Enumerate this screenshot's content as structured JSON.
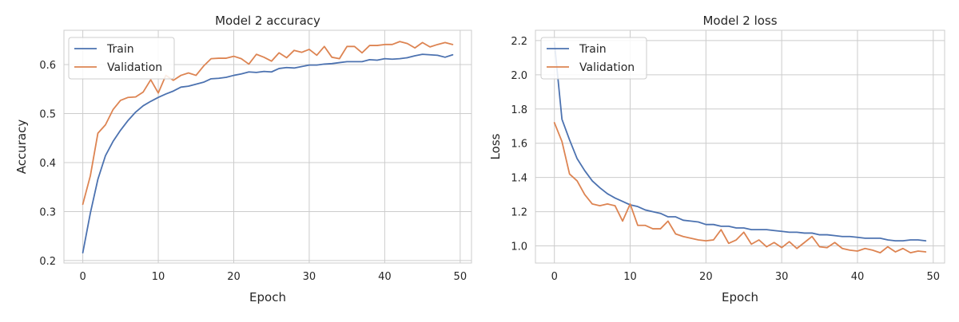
{
  "chart_data": [
    {
      "type": "line",
      "title": "Model 2 accuracy",
      "xlabel": "Epoch",
      "ylabel": "Accuracy",
      "xlim": [
        -2.5,
        51.5
      ],
      "ylim": [
        0.195,
        0.67
      ],
      "xticks": [
        0,
        10,
        20,
        30,
        40,
        50
      ],
      "yticks": [
        0.2,
        0.3,
        0.4,
        0.5,
        0.6
      ],
      "xtick_labels": [
        "0",
        "10",
        "20",
        "30",
        "40",
        "50"
      ],
      "ytick_labels": [
        "0.2",
        "0.3",
        "0.4",
        "0.5",
        "0.6"
      ],
      "grid": true,
      "legend_position": "top-left",
      "x": [
        0,
        1,
        2,
        3,
        4,
        5,
        6,
        7,
        8,
        9,
        10,
        11,
        12,
        13,
        14,
        15,
        16,
        17,
        18,
        19,
        20,
        21,
        22,
        23,
        24,
        25,
        26,
        27,
        28,
        29,
        30,
        31,
        32,
        33,
        34,
        35,
        36,
        37,
        38,
        39,
        40,
        41,
        42,
        43,
        44,
        45,
        46,
        47,
        48,
        49
      ],
      "series": [
        {
          "name": "Train",
          "color": "#4c72b0",
          "values": [
            0.216,
            0.297,
            0.366,
            0.414,
            0.443,
            0.466,
            0.486,
            0.503,
            0.516,
            0.525,
            0.533,
            0.54,
            0.546,
            0.554,
            0.556,
            0.56,
            0.564,
            0.571,
            0.572,
            0.574,
            0.578,
            0.581,
            0.585,
            0.584,
            0.586,
            0.585,
            0.592,
            0.594,
            0.593,
            0.596,
            0.599,
            0.599,
            0.601,
            0.602,
            0.604,
            0.606,
            0.606,
            0.606,
            0.61,
            0.609,
            0.612,
            0.611,
            0.612,
            0.614,
            0.618,
            0.621,
            0.62,
            0.619,
            0.615,
            0.62
          ]
        },
        {
          "name": "Validation",
          "color": "#dd8452",
          "values": [
            0.315,
            0.373,
            0.46,
            0.477,
            0.508,
            0.527,
            0.533,
            0.534,
            0.544,
            0.569,
            0.542,
            0.578,
            0.568,
            0.578,
            0.583,
            0.578,
            0.597,
            0.612,
            0.613,
            0.613,
            0.617,
            0.612,
            0.601,
            0.621,
            0.615,
            0.607,
            0.624,
            0.614,
            0.629,
            0.625,
            0.631,
            0.619,
            0.637,
            0.615,
            0.612,
            0.637,
            0.637,
            0.624,
            0.639,
            0.639,
            0.641,
            0.641,
            0.647,
            0.643,
            0.634,
            0.645,
            0.636,
            0.641,
            0.645,
            0.641
          ]
        }
      ]
    },
    {
      "type": "line",
      "title": "Model 2 loss",
      "xlabel": "Epoch",
      "ylabel": "Loss",
      "xlim": [
        -2.5,
        51.5
      ],
      "ylim": [
        0.9,
        2.26
      ],
      "xticks": [
        0,
        10,
        20,
        30,
        40,
        50
      ],
      "yticks": [
        1.0,
        1.2,
        1.4,
        1.6,
        1.8,
        2.0,
        2.2
      ],
      "xtick_labels": [
        "0",
        "10",
        "20",
        "30",
        "40",
        "50"
      ],
      "ytick_labels": [
        "1.0",
        "1.2",
        "1.4",
        "1.6",
        "1.8",
        "2.0",
        "2.2"
      ],
      "grid": true,
      "legend_position": "top-left",
      "x": [
        0,
        1,
        2,
        3,
        4,
        5,
        6,
        7,
        8,
        9,
        10,
        11,
        12,
        13,
        14,
        15,
        16,
        17,
        18,
        19,
        20,
        21,
        22,
        23,
        24,
        25,
        26,
        27,
        28,
        29,
        30,
        31,
        32,
        33,
        34,
        35,
        36,
        37,
        38,
        39,
        40,
        41,
        42,
        43,
        44,
        45,
        46,
        47,
        48,
        49
      ],
      "series": [
        {
          "name": "Train",
          "color": "#4c72b0",
          "values": [
            2.19,
            1.74,
            1.62,
            1.51,
            1.44,
            1.38,
            1.34,
            1.305,
            1.28,
            1.26,
            1.24,
            1.23,
            1.21,
            1.2,
            1.19,
            1.17,
            1.17,
            1.15,
            1.145,
            1.14,
            1.125,
            1.125,
            1.115,
            1.115,
            1.105,
            1.105,
            1.095,
            1.095,
            1.095,
            1.09,
            1.085,
            1.08,
            1.08,
            1.075,
            1.075,
            1.065,
            1.065,
            1.06,
            1.055,
            1.055,
            1.05,
            1.045,
            1.045,
            1.045,
            1.035,
            1.03,
            1.03,
            1.035,
            1.035,
            1.03
          ]
        },
        {
          "name": "Validation",
          "color": "#dd8452",
          "values": [
            1.72,
            1.61,
            1.42,
            1.38,
            1.3,
            1.245,
            1.235,
            1.245,
            1.235,
            1.145,
            1.245,
            1.12,
            1.12,
            1.1,
            1.1,
            1.145,
            1.07,
            1.055,
            1.045,
            1.035,
            1.03,
            1.035,
            1.095,
            1.015,
            1.035,
            1.08,
            1.01,
            1.035,
            0.995,
            1.02,
            0.99,
            1.025,
            0.985,
            1.02,
            1.055,
            0.995,
            0.99,
            1.02,
            0.985,
            0.975,
            0.97,
            0.985,
            0.975,
            0.96,
            0.995,
            0.965,
            0.985,
            0.96,
            0.97,
            0.965
          ]
        }
      ]
    }
  ]
}
